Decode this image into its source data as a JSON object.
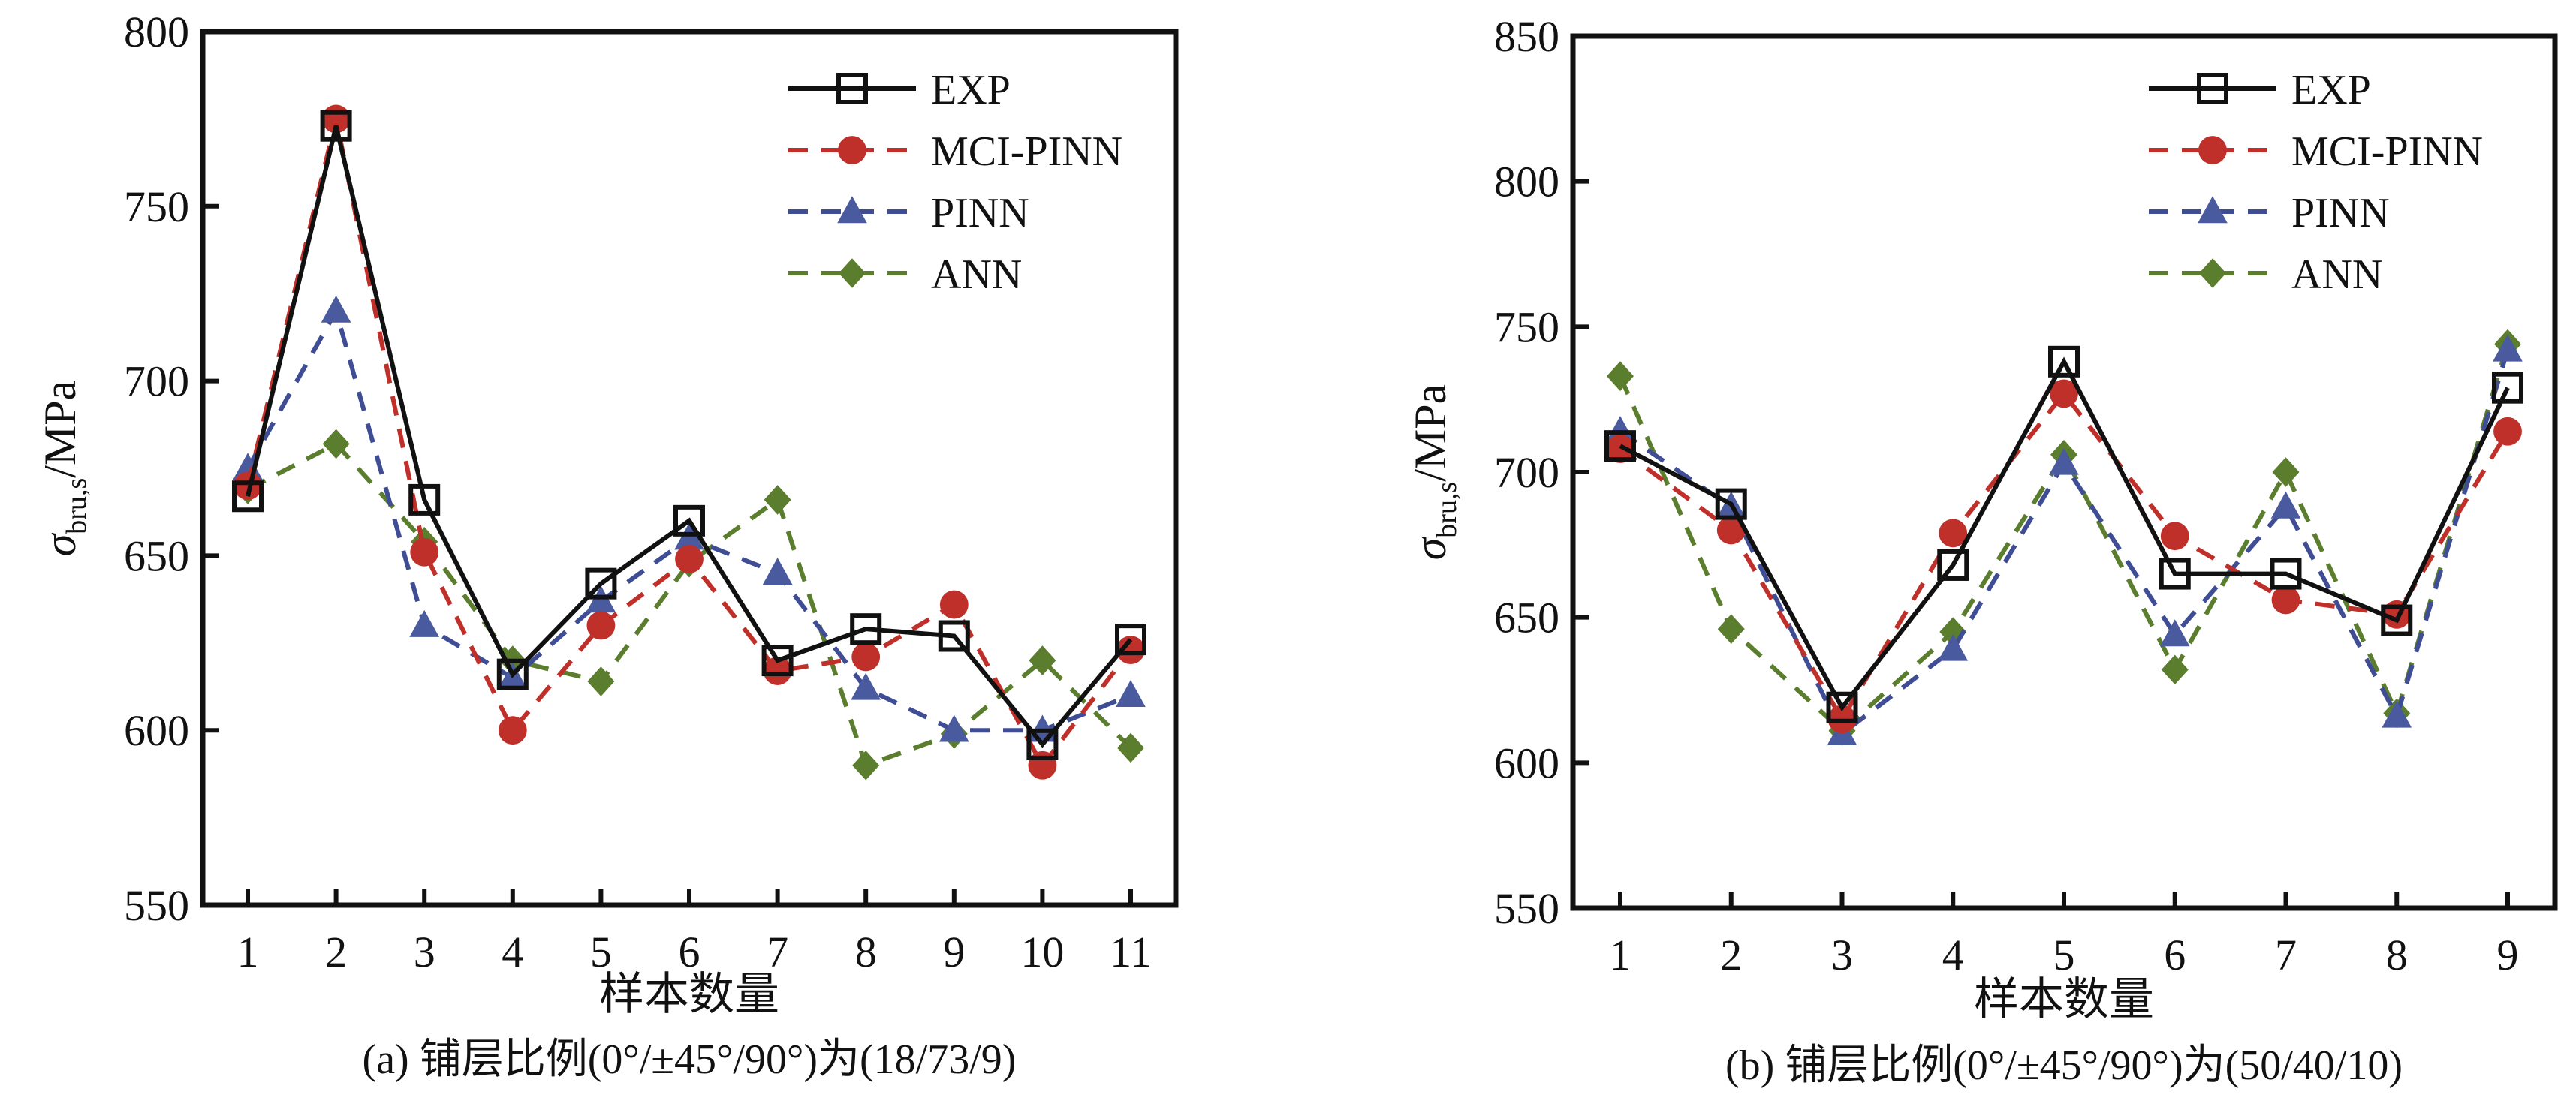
{
  "chart_data": [
    {
      "type": "line",
      "title": "",
      "caption": "(a) 铺层比例(0°/±45°/90°)为(18/73/9)",
      "xlabel": "样本数量",
      "ylabel_main": "σ",
      "ylabel_sub": "bru,s",
      "ylabel_unit": "/MPa",
      "x": [
        1,
        2,
        3,
        4,
        5,
        6,
        7,
        8,
        9,
        10,
        11
      ],
      "x_tick_labels": [
        "1",
        "2",
        "3",
        "4",
        "5",
        "6",
        "7",
        "8",
        "9",
        "10",
        "11"
      ],
      "ylim": [
        550,
        800
      ],
      "y_ticks": [
        550,
        600,
        650,
        700,
        750,
        800
      ],
      "y_tick_labels": [
        "550",
        "600",
        "650",
        "700",
        "750",
        "800"
      ],
      "grid": false,
      "legend_position": "top-right",
      "series": [
        {
          "name": "EXP",
          "marker": "square-open",
          "line": "solid",
          "color": "#111111",
          "values": [
            667,
            773,
            666,
            616,
            642,
            660,
            620,
            629,
            627,
            596,
            626
          ]
        },
        {
          "name": "MCI-PINN",
          "marker": "circle",
          "line": "dashed",
          "color": "#c0302a",
          "values": [
            670,
            775,
            651,
            600,
            630,
            649,
            617,
            621,
            636,
            590,
            623
          ]
        },
        {
          "name": "PINN",
          "marker": "triangle",
          "line": "dashed",
          "color": "#3f4d94",
          "values": [
            675,
            720,
            630,
            615,
            637,
            655,
            645,
            612,
            600,
            600,
            610
          ]
        },
        {
          "name": "ANN",
          "marker": "diamond",
          "line": "dashed",
          "color": "#5b7d2e",
          "values": [
            669,
            682,
            654,
            620,
            614,
            648,
            666,
            590,
            599,
            620,
            595
          ]
        }
      ]
    },
    {
      "type": "line",
      "title": "",
      "caption": "(b) 铺层比例(0°/±45°/90°)为(50/40/10)",
      "xlabel": "样本数量",
      "ylabel_main": "σ",
      "ylabel_sub": "bru,s",
      "ylabel_unit": "/MPa",
      "x": [
        1,
        2,
        3,
        4,
        5,
        6,
        7,
        8,
        9
      ],
      "x_tick_labels": [
        "1",
        "2",
        "3",
        "4",
        "5",
        "6",
        "7",
        "8",
        "9"
      ],
      "ylim": [
        550,
        850
      ],
      "y_ticks": [
        550,
        600,
        650,
        700,
        750,
        800,
        850
      ],
      "y_tick_labels": [
        "550",
        "600",
        "650",
        "700",
        "750",
        "800",
        "850"
      ],
      "grid": false,
      "legend_position": "top-right",
      "series": [
        {
          "name": "EXP",
          "marker": "square-open",
          "line": "solid",
          "color": "#111111",
          "values": [
            709,
            689,
            619,
            668,
            738,
            665,
            665,
            649,
            729
          ]
        },
        {
          "name": "MCI-PINN",
          "marker": "circle",
          "line": "dashed",
          "color": "#c0302a",
          "values": [
            708,
            680,
            615,
            679,
            727,
            678,
            656,
            651,
            714
          ]
        },
        {
          "name": "PINN",
          "marker": "triangle",
          "line": "dashed",
          "color": "#3f4d94",
          "values": [
            714,
            688,
            610,
            639,
            703,
            644,
            688,
            616,
            742
          ]
        },
        {
          "name": "ANN",
          "marker": "diamond",
          "line": "dashed",
          "color": "#5b7d2e",
          "values": [
            733,
            646,
            611,
            645,
            706,
            632,
            700,
            617,
            744
          ]
        }
      ]
    }
  ]
}
